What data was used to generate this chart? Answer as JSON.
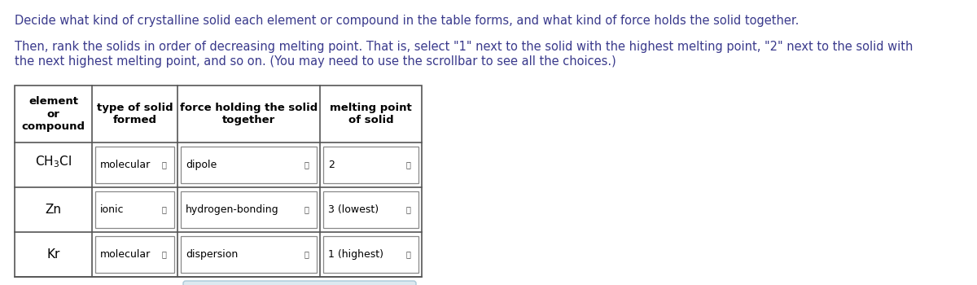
{
  "title_line1": "Decide what kind of crystalline solid each element or compound in the table forms, and what kind of force holds the solid together.",
  "title_line2": "Then, rank the solids in order of decreasing melting point. That is, select \"1\" next to the solid with the highest melting point, \"2\" next to the solid with",
  "title_line3": "the next highest melting point, and so on. (You may need to use the scrollbar to see all the choices.)",
  "text_color": "#3a3a8c",
  "bg_color": "#ffffff",
  "header_row": [
    "element\nor\ncompound",
    "type of solid\nformed",
    "force holding the solid\ntogether",
    "melting point\nof solid"
  ],
  "col0_entries": [
    "CH₃Cl",
    "Zn",
    "Kr"
  ],
  "col1_entries": [
    "molecular",
    "ionic",
    "molecular"
  ],
  "col2_entries": [
    "dipole",
    "hydrogen-bonding",
    "dispersion"
  ],
  "col3_entries": [
    "2",
    "3 (lowest)",
    "1 (highest)"
  ],
  "table_border": "#555555",
  "dropdown_border": "#888888",
  "button_bg": "#dce9f0",
  "button_border": "#aac8d8",
  "button_x_color": "#6699bb",
  "button_undo_color": "#6699bb"
}
